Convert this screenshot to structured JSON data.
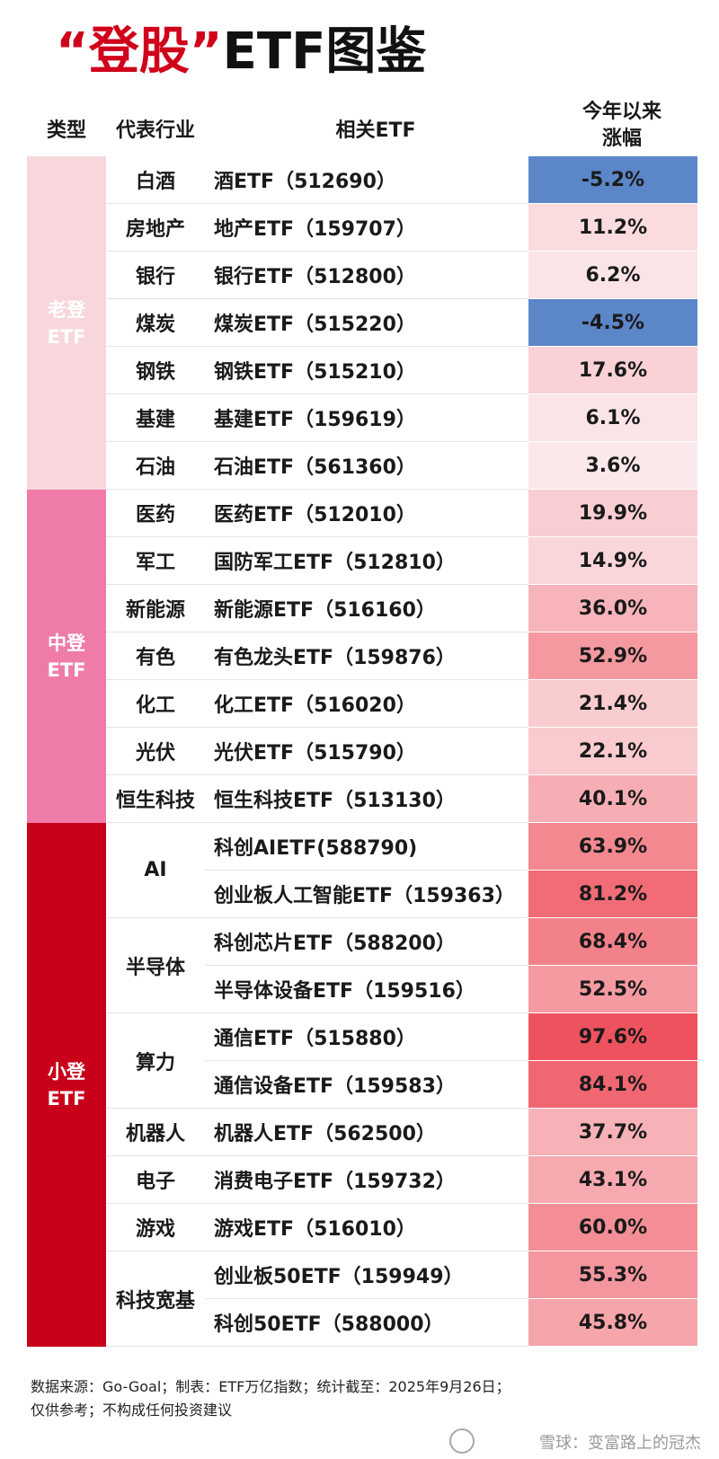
{
  "title_quote": "“登股”",
  "title_rest": "ETF图鉴",
  "headers": {
    "type": "类型",
    "industry": "代表行业",
    "etf": "相关ETF",
    "change_l1": "今年以来",
    "change_l2": "涨幅"
  },
  "colors": {
    "title_red": "#d0021b",
    "old_group": "#f7d7dc",
    "mid_group": "#ef7ca8",
    "small_group": "#c9001a",
    "negative": "#5b86c8"
  },
  "chart_data": {
    "type": "table",
    "title": "“登股”ETF图鉴",
    "columns": [
      "类型",
      "代表行业",
      "相关ETF",
      "今年以来涨幅"
    ],
    "groups": [
      {
        "label_l1": "老登",
        "label_l2": "ETF",
        "style": "old",
        "industries": [
          {
            "name": "白酒",
            "etfs": [
              {
                "name": "酒ETF（512690）",
                "change": -5.2
              }
            ]
          },
          {
            "name": "房地产",
            "etfs": [
              {
                "name": "地产ETF（159707）",
                "change": 11.2
              }
            ]
          },
          {
            "name": "银行",
            "etfs": [
              {
                "name": "银行ETF（512800）",
                "change": 6.2
              }
            ]
          },
          {
            "name": "煤炭",
            "etfs": [
              {
                "name": "煤炭ETF（515220）",
                "change": -4.5
              }
            ]
          },
          {
            "name": "钢铁",
            "etfs": [
              {
                "name": "钢铁ETF（515210）",
                "change": 17.6
              }
            ]
          },
          {
            "name": "基建",
            "etfs": [
              {
                "name": "基建ETF（159619）",
                "change": 6.1
              }
            ]
          },
          {
            "name": "石油",
            "etfs": [
              {
                "name": "石油ETF（561360）",
                "change": 3.6
              }
            ]
          }
        ]
      },
      {
        "label_l1": "中登",
        "label_l2": "ETF",
        "style": "mid",
        "industries": [
          {
            "name": "医药",
            "etfs": [
              {
                "name": "医药ETF（512010）",
                "change": 19.9
              }
            ]
          },
          {
            "name": "军工",
            "etfs": [
              {
                "name": "国防军工ETF（512810）",
                "change": 14.9
              }
            ]
          },
          {
            "name": "新能源",
            "etfs": [
              {
                "name": "新能源ETF（516160）",
                "change": 36.0
              }
            ]
          },
          {
            "name": "有色",
            "etfs": [
              {
                "name": "有色龙头ETF（159876）",
                "change": 52.9
              }
            ]
          },
          {
            "name": "化工",
            "etfs": [
              {
                "name": "化工ETF（516020）",
                "change": 21.4
              }
            ]
          },
          {
            "name": "光伏",
            "etfs": [
              {
                "name": "光伏ETF（515790）",
                "change": 22.1
              }
            ]
          },
          {
            "name": "恒生科技",
            "etfs": [
              {
                "name": "恒生科技ETF（513130）",
                "change": 40.1
              }
            ]
          }
        ]
      },
      {
        "label_l1": "小登",
        "label_l2": "ETF",
        "style": "small",
        "industries": [
          {
            "name": "AI",
            "etfs": [
              {
                "name": "科创AIETF(588790)",
                "change": 63.9
              },
              {
                "name": "创业板人工智能ETF（159363）",
                "change": 81.2
              }
            ]
          },
          {
            "name": "半导体",
            "etfs": [
              {
                "name": "科创芯片ETF（588200）",
                "change": 68.4
              },
              {
                "name": "半导体设备ETF（159516）",
                "change": 52.5
              }
            ]
          },
          {
            "name": "算力",
            "etfs": [
              {
                "name": "通信ETF（515880）",
                "change": 97.6
              },
              {
                "name": "通信设备ETF（159583）",
                "change": 84.1
              }
            ]
          },
          {
            "name": "机器人",
            "etfs": [
              {
                "name": "机器人ETF（562500）",
                "change": 37.7
              }
            ]
          },
          {
            "name": "电子",
            "etfs": [
              {
                "name": "消费电子ETF（159732）",
                "change": 43.1
              }
            ]
          },
          {
            "name": "游戏",
            "etfs": [
              {
                "name": "游戏ETF（516010）",
                "change": 60.0
              }
            ]
          },
          {
            "name": "科技宽基",
            "etfs": [
              {
                "name": "创业板50ETF（159949）",
                "change": 55.3
              },
              {
                "name": "科创50ETF（588000）",
                "change": 45.8
              }
            ]
          }
        ]
      }
    ]
  },
  "footer": {
    "line1": "数据来源：Go-Goal；制表：ETF万亿指数；统计截至：2025年9月26日；",
    "line2": "仅供参考；不构成任何投资建议"
  },
  "watermark": "雪球：变富路上的冠杰"
}
